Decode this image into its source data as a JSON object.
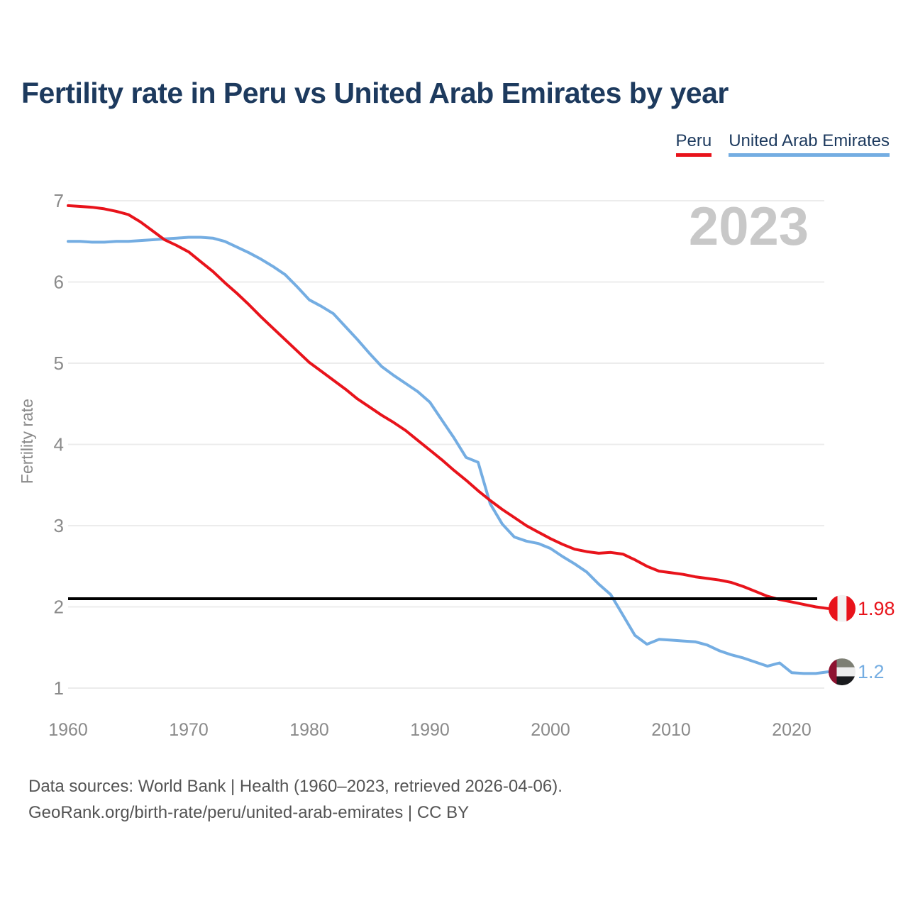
{
  "title": "Fertility rate in Peru vs United Arab Emirates by year",
  "watermark": "2023",
  "legend": {
    "items": [
      {
        "label": "Peru",
        "color": "#e8131b"
      },
      {
        "label": "United Arab Emirates",
        "color": "#74ade2"
      }
    ]
  },
  "footer": {
    "line1": "Data sources: World Bank | Health (1960–2023, retrieved 2026-04-06).",
    "line2": "GeoRank.org/birth-rate/peru/united-arab-emirates | CC BY"
  },
  "chart_data": {
    "type": "line",
    "title": "Fertility rate in Peru vs United Arab Emirates by year",
    "xlabel": "",
    "ylabel": "Fertility rate",
    "xlim": [
      1960,
      2023
    ],
    "ylim": [
      1,
      7
    ],
    "x_ticks": [
      1960,
      1970,
      1980,
      1990,
      2000,
      2010,
      2020
    ],
    "y_ticks": [
      7,
      6,
      5,
      4,
      3,
      2,
      1
    ],
    "grid": "horizontal",
    "legend_position": "top-right",
    "reference_line": {
      "value": 2.1,
      "color": "#000000"
    },
    "x": [
      1960,
      1961,
      1962,
      1963,
      1964,
      1965,
      1966,
      1967,
      1968,
      1969,
      1970,
      1971,
      1972,
      1973,
      1974,
      1975,
      1976,
      1977,
      1978,
      1979,
      1980,
      1981,
      1982,
      1983,
      1984,
      1985,
      1986,
      1987,
      1988,
      1989,
      1990,
      1991,
      1992,
      1993,
      1994,
      1995,
      1996,
      1997,
      1998,
      1999,
      2000,
      2001,
      2002,
      2003,
      2004,
      2005,
      2006,
      2007,
      2008,
      2009,
      2010,
      2011,
      2012,
      2013,
      2014,
      2015,
      2016,
      2017,
      2018,
      2019,
      2020,
      2021,
      2022,
      2023
    ],
    "series": [
      {
        "name": "Peru",
        "color": "#e8131b",
        "end_label": "1.98",
        "flag": "peru-flag",
        "values": [
          6.94,
          6.93,
          6.92,
          6.9,
          6.87,
          6.83,
          6.74,
          6.63,
          6.52,
          6.45,
          6.37,
          6.25,
          6.13,
          5.99,
          5.86,
          5.72,
          5.57,
          5.43,
          5.29,
          5.15,
          5.01,
          4.9,
          4.79,
          4.68,
          4.56,
          4.46,
          4.36,
          4.27,
          4.17,
          4.05,
          3.93,
          3.81,
          3.68,
          3.56,
          3.43,
          3.31,
          3.2,
          3.1,
          3.0,
          2.92,
          2.84,
          2.77,
          2.71,
          2.68,
          2.66,
          2.67,
          2.65,
          2.58,
          2.5,
          2.44,
          2.42,
          2.4,
          2.37,
          2.35,
          2.33,
          2.3,
          2.25,
          2.19,
          2.13,
          2.09,
          2.06,
          2.03,
          2.0,
          1.98
        ]
      },
      {
        "name": "United Arab Emirates",
        "color": "#74ade2",
        "end_label": "1.2",
        "flag": "uae-flag",
        "values": [
          6.5,
          6.5,
          6.49,
          6.49,
          6.5,
          6.5,
          6.51,
          6.52,
          6.53,
          6.54,
          6.55,
          6.55,
          6.54,
          6.5,
          6.43,
          6.36,
          6.28,
          6.19,
          6.09,
          5.94,
          5.78,
          5.7,
          5.61,
          5.45,
          5.29,
          5.12,
          4.96,
          4.85,
          4.75,
          4.65,
          4.52,
          4.3,
          4.08,
          3.84,
          3.78,
          3.27,
          3.02,
          2.86,
          2.81,
          2.78,
          2.72,
          2.62,
          2.53,
          2.43,
          2.28,
          2.15,
          1.9,
          1.65,
          1.54,
          1.6,
          1.59,
          1.58,
          1.57,
          1.53,
          1.46,
          1.41,
          1.37,
          1.32,
          1.27,
          1.31,
          1.19,
          1.18,
          1.18,
          1.2
        ]
      }
    ]
  }
}
